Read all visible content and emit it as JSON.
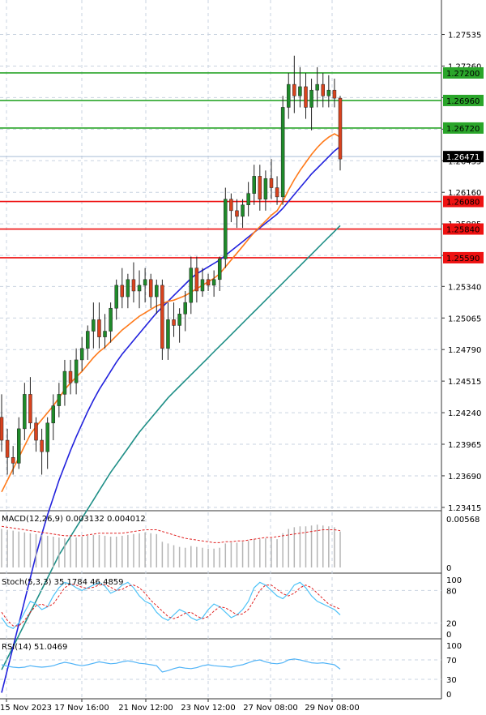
{
  "chart_data": {
    "type": "candlestick",
    "instrument_timeframe": "",
    "price_axis": {
      "min": 1.234,
      "max": 1.278,
      "ticks": [
        "1.27535",
        "1.27260",
        "1.26985",
        "1.26710",
        "1.26435",
        "1.26160",
        "1.25885",
        "1.25610",
        "1.25340",
        "1.25065",
        "1.24790",
        "1.24515",
        "1.24240",
        "1.23965",
        "1.23690",
        "1.23415"
      ]
    },
    "time_axis_labels": [
      "15 Nov 2023",
      "17 Nov 16:00",
      "21 Nov 12:00",
      "23 Nov 12:00",
      "27 Nov 08:00",
      "29 Nov 08:00"
    ],
    "current_price": "1.26471",
    "resistance_levels": [
      {
        "label": "1.27200",
        "value": 1.272
      },
      {
        "label": "1.26960",
        "value": 1.2696
      },
      {
        "label": "1.26720",
        "value": 1.2672
      }
    ],
    "support_levels": [
      {
        "label": "1.26080",
        "value": 1.2608
      },
      {
        "label": "1.25840",
        "value": 1.2584
      },
      {
        "label": "1.25590",
        "value": 1.2559
      }
    ],
    "colors": {
      "up": "#1f8a2a",
      "down": "#d9431e",
      "ma_fast": "#ff7a1a",
      "ma_mid": "#2222dd",
      "ma_slow": "#1f8f87",
      "resistance": "#2aa52a",
      "support": "#ee1111"
    },
    "candles": [
      [
        1.242,
        1.244,
        1.239,
        1.24
      ],
      [
        1.24,
        1.241,
        1.237,
        1.2385
      ],
      [
        1.2385,
        1.2395,
        1.237,
        1.238
      ],
      [
        1.238,
        1.242,
        1.2375,
        1.241
      ],
      [
        1.241,
        1.245,
        1.24,
        1.244
      ],
      [
        1.244,
        1.2455,
        1.241,
        1.2415
      ],
      [
        1.2415,
        1.242,
        1.239,
        1.24
      ],
      [
        1.24,
        1.241,
        1.237,
        1.239
      ],
      [
        1.239,
        1.242,
        1.2375,
        1.2415
      ],
      [
        1.2415,
        1.244,
        1.24,
        1.243
      ],
      [
        1.243,
        1.245,
        1.242,
        1.244
      ],
      [
        1.244,
        1.247,
        1.243,
        1.246
      ],
      [
        1.246,
        1.247,
        1.244,
        1.245
      ],
      [
        1.245,
        1.248,
        1.244,
        1.247
      ],
      [
        1.247,
        1.249,
        1.246,
        1.248
      ],
      [
        1.248,
        1.25,
        1.247,
        1.2495
      ],
      [
        1.2495,
        1.252,
        1.248,
        1.2505
      ],
      [
        1.2505,
        1.252,
        1.248,
        1.249
      ],
      [
        1.249,
        1.251,
        1.248,
        1.2495
      ],
      [
        1.2495,
        1.252,
        1.2485,
        1.2515
      ],
      [
        1.2515,
        1.254,
        1.2505,
        1.2535
      ],
      [
        1.2535,
        1.255,
        1.2515,
        1.2525
      ],
      [
        1.2525,
        1.2545,
        1.2515,
        1.254
      ],
      [
        1.254,
        1.2555,
        1.252,
        1.253
      ],
      [
        1.253,
        1.2548,
        1.2515,
        1.2535
      ],
      [
        1.2535,
        1.255,
        1.252,
        1.254
      ],
      [
        1.254,
        1.2545,
        1.2515,
        1.2525
      ],
      [
        1.2525,
        1.254,
        1.251,
        1.2535
      ],
      [
        1.2535,
        1.254,
        1.247,
        1.248
      ],
      [
        1.248,
        1.252,
        1.247,
        1.2505
      ],
      [
        1.2505,
        1.252,
        1.249,
        1.25
      ],
      [
        1.25,
        1.2515,
        1.2485,
        1.251
      ],
      [
        1.251,
        1.253,
        1.2495,
        1.252
      ],
      [
        1.252,
        1.256,
        1.251,
        1.255
      ],
      [
        1.255,
        1.256,
        1.252,
        1.253
      ],
      [
        1.253,
        1.255,
        1.2525,
        1.254
      ],
      [
        1.254,
        1.2545,
        1.253,
        1.2535
      ],
      [
        1.2535,
        1.2548,
        1.2525,
        1.254
      ],
      [
        1.254,
        1.256,
        1.253,
        1.2558
      ],
      [
        1.2558,
        1.262,
        1.255,
        1.261
      ],
      [
        1.261,
        1.2615,
        1.259,
        1.26
      ],
      [
        1.26,
        1.261,
        1.2585,
        1.2595
      ],
      [
        1.2595,
        1.261,
        1.2585,
        1.2605
      ],
      [
        1.2605,
        1.2625,
        1.2595,
        1.2615
      ],
      [
        1.2615,
        1.264,
        1.2605,
        1.263
      ],
      [
        1.263,
        1.264,
        1.26,
        1.261
      ],
      [
        1.261,
        1.2635,
        1.26,
        1.2628
      ],
      [
        1.2628,
        1.2645,
        1.261,
        1.262
      ],
      [
        1.262,
        1.263,
        1.2605,
        1.2612
      ],
      [
        1.2612,
        1.27,
        1.2605,
        1.269
      ],
      [
        1.269,
        1.272,
        1.268,
        1.271
      ],
      [
        1.271,
        1.2735,
        1.2685,
        1.27
      ],
      [
        1.27,
        1.2725,
        1.269,
        1.2708
      ],
      [
        1.2708,
        1.272,
        1.268,
        1.269
      ],
      [
        1.269,
        1.2715,
        1.267,
        1.2705
      ],
      [
        1.2705,
        1.2725,
        1.269,
        1.271
      ],
      [
        1.271,
        1.272,
        1.269,
        1.27
      ],
      [
        1.27,
        1.2718,
        1.269,
        1.2705
      ],
      [
        1.2705,
        1.2715,
        1.269,
        1.2698
      ],
      [
        1.2698,
        1.27,
        1.2635,
        1.2645
      ]
    ],
    "ma_fast": [
      1.2355,
      1.2365,
      1.2375,
      1.2385,
      1.2395,
      1.2405,
      1.2412,
      1.2418,
      1.2424,
      1.243,
      1.2437,
      1.2444,
      1.245,
      1.2455,
      1.246,
      1.2466,
      1.2472,
      1.2477,
      1.2481,
      1.2486,
      1.2491,
      1.2496,
      1.25,
      1.2504,
      1.2508,
      1.2511,
      1.2514,
      1.2517,
      1.2519,
      1.2521,
      1.2522,
      1.2524,
      1.2526,
      1.2529,
      1.2532,
      1.2535,
      1.2538,
      1.2541,
      1.2545,
      1.2551,
      1.2557,
      1.2563,
      1.2569,
      1.2575,
      1.2581,
      1.2586,
      1.2591,
      1.2596,
      1.26,
      1.2608,
      1.2618,
      1.2627,
      1.2635,
      1.2642,
      1.2649,
      1.2655,
      1.266,
      1.2664,
      1.2667,
      1.2664
    ],
    "ma_mid": [
      1.218,
      1.22,
      1.222,
      1.224,
      1.226,
      1.228,
      1.23,
      1.2318,
      1.2335,
      1.235,
      1.2365,
      1.2378,
      1.2391,
      1.2403,
      1.2414,
      1.2425,
      1.2435,
      1.2444,
      1.2452,
      1.246,
      1.2468,
      1.2475,
      1.2481,
      1.2487,
      1.2493,
      1.2499,
      1.2505,
      1.2511,
      1.2516,
      1.2521,
      1.2526,
      1.2531,
      1.2536,
      1.2541,
      1.2545,
      1.2548,
      1.2551,
      1.2554,
      1.2557,
      1.2561,
      1.2565,
      1.2569,
      1.2573,
      1.2577,
      1.2581,
      1.2585,
      1.2589,
      1.2593,
      1.2597,
      1.2602,
      1.2608,
      1.2614,
      1.262,
      1.2626,
      1.2632,
      1.2637,
      1.2642,
      1.2647,
      1.2652,
      1.2656
    ],
    "ma_slow": [
      1.22,
      1.221,
      1.222,
      1.223,
      1.224,
      1.225,
      1.226,
      1.227,
      1.228,
      1.229,
      1.23,
      1.2308,
      1.2316,
      1.2324,
      1.2332,
      1.234,
      1.2348,
      1.2356,
      1.2364,
      1.2372,
      1.2379,
      1.2386,
      1.2393,
      1.24,
      1.2407,
      1.2413,
      1.2419,
      1.2425,
      1.2431,
      1.2437,
      1.2442,
      1.2447,
      1.2452,
      1.2457,
      1.2462,
      1.2467,
      1.2472,
      1.2477,
      1.2482,
      1.2487,
      1.2492,
      1.2497,
      1.2502,
      1.2507,
      1.2512,
      1.2517,
      1.2522,
      1.2527,
      1.2532,
      1.2537,
      1.2542,
      1.2547,
      1.2552,
      1.2557,
      1.2562,
      1.2567,
      1.2572,
      1.2577,
      1.2582,
      1.2587
    ],
    "macd": {
      "label": "MACD(12,26,9) 0.003132 0.004012",
      "axis_labels": [
        "0.00568",
        "0"
      ],
      "max": 0.00568,
      "histogram": [
        0.0045,
        0.0044,
        0.0043,
        0.0042,
        0.0041,
        0.004,
        0.0039,
        0.0038,
        0.0037,
        0.0036,
        0.0035,
        0.0034,
        0.0034,
        0.0035,
        0.0036,
        0.0037,
        0.0038,
        0.0038,
        0.0037,
        0.0036,
        0.0036,
        0.0037,
        0.0038,
        0.0039,
        0.004,
        0.0041,
        0.004,
        0.0039,
        0.003,
        0.0028,
        0.0026,
        0.0024,
        0.0023,
        0.0025,
        0.0024,
        0.0023,
        0.0022,
        0.0022,
        0.0023,
        0.0028,
        0.0029,
        0.0029,
        0.003,
        0.0031,
        0.0033,
        0.0033,
        0.0034,
        0.0034,
        0.0033,
        0.004,
        0.0045,
        0.0047,
        0.0048,
        0.0048,
        0.0049,
        0.005,
        0.0049,
        0.0048,
        0.0047,
        0.0042
      ],
      "signal": [
        0.0048,
        0.0047,
        0.0046,
        0.0045,
        0.0044,
        0.0043,
        0.0042,
        0.0041,
        0.004,
        0.0039,
        0.0038,
        0.0037,
        0.0037,
        0.0037,
        0.0037,
        0.0038,
        0.0039,
        0.004,
        0.004,
        0.004,
        0.004,
        0.004,
        0.0041,
        0.0042,
        0.0043,
        0.0044,
        0.0044,
        0.0044,
        0.0042,
        0.004,
        0.0038,
        0.0036,
        0.0034,
        0.0033,
        0.0032,
        0.0031,
        0.003,
        0.0029,
        0.0029,
        0.003,
        0.003,
        0.0031,
        0.0031,
        0.0032,
        0.0033,
        0.0034,
        0.0035,
        0.0035,
        0.0036,
        0.0037,
        0.0038,
        0.0039,
        0.004,
        0.0041,
        0.0042,
        0.0043,
        0.0044,
        0.0044,
        0.0044,
        0.0043
      ]
    },
    "stochastic": {
      "label": "Stoch(5,3,3) 35.1784 46.4859",
      "axis_labels": [
        "100",
        "80",
        "20",
        "0"
      ],
      "k": [
        30,
        15,
        10,
        20,
        40,
        60,
        55,
        45,
        50,
        70,
        85,
        95,
        92,
        85,
        80,
        85,
        90,
        95,
        88,
        75,
        80,
        90,
        95,
        85,
        70,
        60,
        55,
        40,
        30,
        25,
        35,
        45,
        40,
        30,
        25,
        30,
        45,
        55,
        50,
        40,
        30,
        35,
        45,
        60,
        85,
        95,
        90,
        80,
        70,
        65,
        75,
        90,
        95,
        85,
        70,
        60,
        55,
        50,
        45,
        35
      ],
      "d": [
        40,
        25,
        15,
        15,
        25,
        40,
        52,
        55,
        50,
        55,
        70,
        85,
        92,
        90,
        86,
        84,
        86,
        90,
        91,
        86,
        80,
        82,
        88,
        90,
        85,
        75,
        62,
        52,
        42,
        32,
        28,
        32,
        38,
        40,
        33,
        28,
        32,
        42,
        50,
        48,
        42,
        35,
        37,
        45,
        62,
        80,
        90,
        90,
        82,
        74,
        70,
        75,
        85,
        90,
        85,
        75,
        65,
        55,
        50,
        46
      ]
    },
    "rsi": {
      "label": "RSI(14) 51.0469",
      "axis_labels": [
        "100",
        "70",
        "30",
        "0"
      ],
      "values": [
        60,
        57,
        55,
        54,
        55,
        58,
        56,
        55,
        56,
        58,
        62,
        65,
        63,
        60,
        58,
        60,
        63,
        66,
        64,
        62,
        63,
        66,
        68,
        66,
        63,
        62,
        60,
        58,
        45,
        48,
        52,
        55,
        53,
        52,
        54,
        58,
        60,
        58,
        57,
        56,
        55,
        58,
        60,
        64,
        68,
        70,
        66,
        63,
        62,
        64,
        70,
        72,
        70,
        67,
        64,
        63,
        64,
        62,
        60,
        51
      ]
    }
  }
}
